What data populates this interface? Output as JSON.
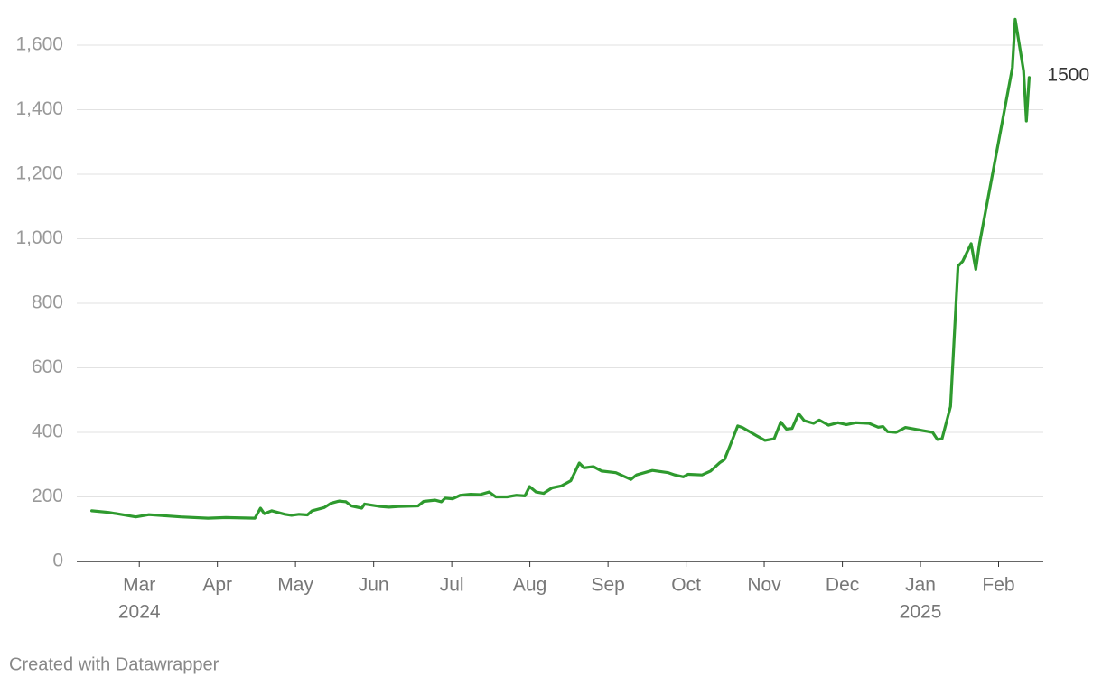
{
  "chart_data": {
    "type": "line",
    "credit": "Created with Datawrapper",
    "x": [
      2024.116,
      2024.134,
      2024.153,
      2024.163,
      2024.177,
      2024.211,
      2024.24,
      2024.259,
      2024.29,
      2024.296,
      2024.3,
      2024.308,
      2024.322,
      2024.329,
      2024.337,
      2024.346,
      2024.351,
      2024.364,
      2024.371,
      2024.38,
      2024.387,
      2024.393,
      2024.404,
      2024.407,
      2024.424,
      2024.433,
      2024.443,
      2024.464,
      2024.47,
      2024.482,
      2024.489,
      2024.493,
      2024.501,
      2024.509,
      2024.52,
      2024.53,
      2024.54,
      2024.547,
      2024.559,
      2024.569,
      2024.578,
      2024.583,
      2024.59,
      2024.598,
      2024.607,
      2024.617,
      2024.627,
      2024.636,
      2024.641,
      2024.651,
      2024.66,
      2024.675,
      2024.691,
      2024.697,
      2024.714,
      2024.731,
      2024.738,
      2024.747,
      2024.752,
      2024.767,
      2024.776,
      2024.786,
      2024.791,
      2024.797,
      2024.805,
      2024.81,
      2024.825,
      2024.834,
      2024.844,
      2024.851,
      2024.857,
      2024.863,
      2024.87,
      2024.876,
      2024.886,
      2024.892,
      2024.902,
      2024.912,
      2024.921,
      2024.931,
      2024.945,
      2024.955,
      2024.96,
      2024.965,
      2024.974,
      2024.984,
      2024.994,
      2025.003,
      2025.013,
      2025.018,
      2025.023,
      2025.032,
      2025.04,
      2025.045,
      2025.054,
      2025.059,
      2025.063,
      2025.098,
      2025.101,
      2025.11,
      2025.113,
      2025.116
    ],
    "series": [
      {
        "color": "#2e9a2e",
        "values": [
          157,
          152,
          143,
          138,
          145,
          138,
          134,
          136,
          134,
          165,
          148,
          157,
          146,
          143,
          146,
          144,
          157,
          167,
          180,
          187,
          185,
          172,
          165,
          178,
          170,
          168,
          170,
          172,
          186,
          190,
          185,
          196,
          194,
          205,
          208,
          207,
          215,
          200,
          200,
          205,
          203,
          232,
          215,
          211,
          228,
          234,
          250,
          305,
          290,
          294,
          280,
          275,
          254,
          268,
          282,
          275,
          268,
          262,
          270,
          268,
          280,
          306,
          316,
          360,
          420,
          415,
          390,
          375,
          380,
          432,
          410,
          412,
          458,
          436,
          428,
          438,
          422,
          430,
          424,
          430,
          428,
          416,
          418,
          402,
          400,
          415,
          410,
          405,
          400,
          378,
          380,
          480,
          915,
          930,
          985,
          905,
          985,
          1530,
          1680,
          1520,
          1365,
          1500
        ]
      }
    ],
    "xlim": [
      2024.1,
      2025.131
    ],
    "xticks": [
      {
        "value": 2024.1667,
        "label": "Mar"
      },
      {
        "value": 2024.25,
        "label": "Apr"
      },
      {
        "value": 2024.3333,
        "label": "May"
      },
      {
        "value": 2024.4167,
        "label": "Jun"
      },
      {
        "value": 2024.5,
        "label": "Jul"
      },
      {
        "value": 2024.5833,
        "label": "Aug"
      },
      {
        "value": 2024.6667,
        "label": "Sep"
      },
      {
        "value": 2024.75,
        "label": "Oct"
      },
      {
        "value": 2024.8333,
        "label": "Nov"
      },
      {
        "value": 2024.9167,
        "label": "Dec"
      },
      {
        "value": 2025.0,
        "label": "Jan"
      },
      {
        "value": 2025.0833,
        "label": "Feb"
      }
    ],
    "x_year_labels": [
      {
        "value": 2024.1667,
        "label": "2024"
      },
      {
        "value": 2025.0,
        "label": "2025"
      }
    ],
    "ylim": [
      0,
      1680
    ],
    "yticks": [
      0,
      200,
      400,
      600,
      800,
      {
        "value": 1000,
        "label": "1,000"
      },
      {
        "value": 1200,
        "label": "1,200"
      },
      {
        "value": 1400,
        "label": "1,400"
      },
      {
        "value": 1600,
        "label": "1,600"
      }
    ],
    "grid": true
  }
}
